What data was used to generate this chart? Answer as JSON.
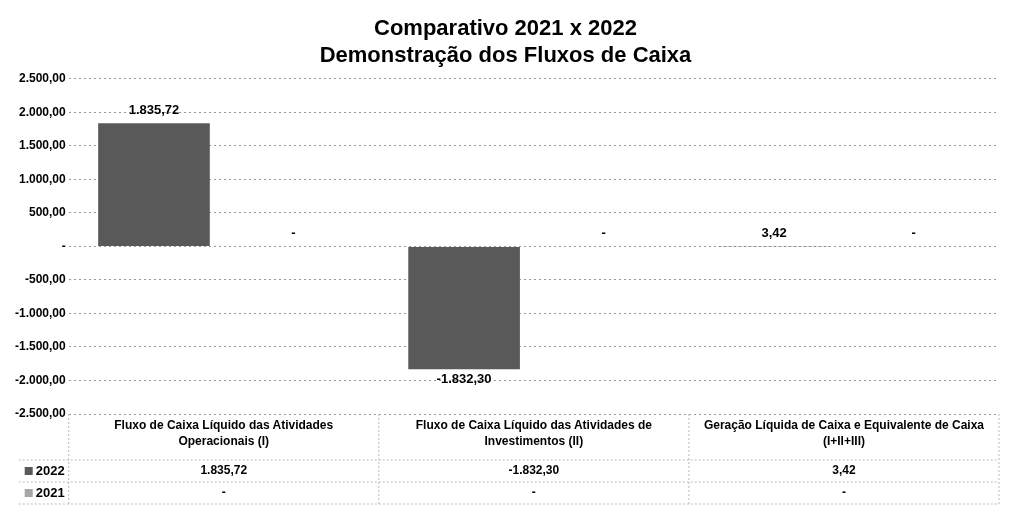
{
  "chart_data": {
    "type": "bar",
    "title": "Comparativo 2021 x 2022",
    "subtitle": "Demonstração dos Fluxos de Caixa",
    "categories": [
      "Fluxo de Caixa Líquido das Atividades Operacionais (I)",
      "Fluxo de Caixa Líquido das Atividades de Investimentos (II)",
      "Geração Líquida de Caixa e Equivalente de Caixa (I+II+III)"
    ],
    "series": [
      {
        "name": "2022",
        "color": "#595959",
        "values": [
          1835.72,
          -1832.3,
          3.42
        ],
        "value_labels": [
          "1.835,72",
          "-1.832,30",
          "3,42"
        ]
      },
      {
        "name": "2021",
        "color": "#a6a6a6",
        "values": [
          0,
          0,
          0
        ],
        "value_labels": [
          "-",
          "-",
          "-"
        ]
      }
    ],
    "ylim": [
      -2500,
      2500
    ],
    "yticks": [
      {
        "value": -2500,
        "label": "-2.500,00"
      },
      {
        "value": -2000,
        "label": "-2.000,00"
      },
      {
        "value": -1500,
        "label": "-1.500,00"
      },
      {
        "value": -1000,
        "label": "-1.000,00"
      },
      {
        "value": -500,
        "label": "-500,00"
      },
      {
        "value": 0,
        "label": "-"
      },
      {
        "value": 500,
        "label": "500,00"
      },
      {
        "value": 1000,
        "label": "1.000,00"
      },
      {
        "value": 1500,
        "label": "1.500,00"
      },
      {
        "value": 2000,
        "label": "2.000,00"
      },
      {
        "value": 2500,
        "label": "2.500,00"
      }
    ],
    "grid": "y",
    "legend": "bottom left"
  }
}
